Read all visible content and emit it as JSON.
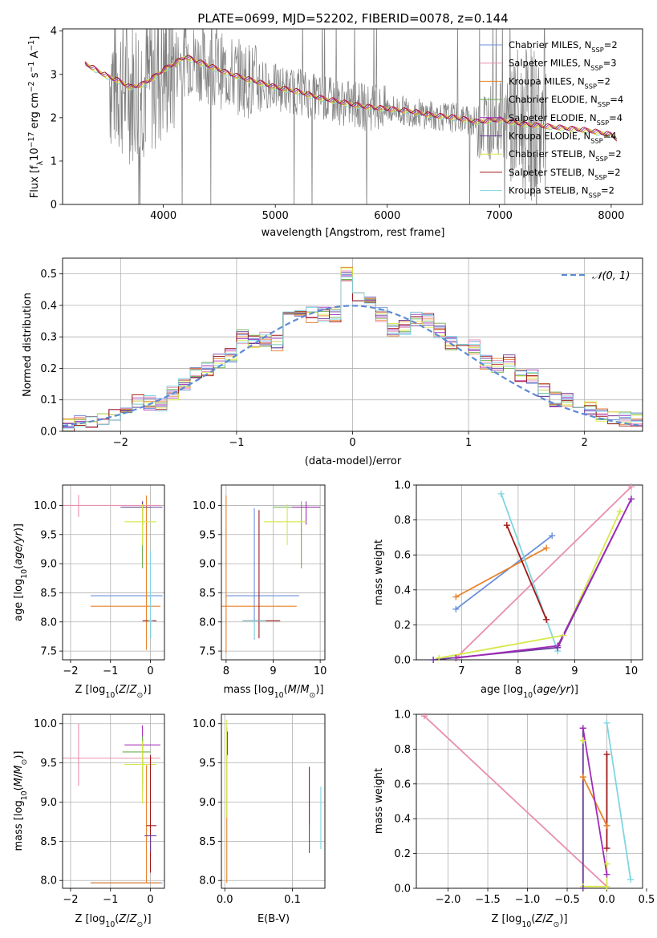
{
  "figure_title": "PLATE=0699, MJD=52202, FIBERID=0078, z=0.144",
  "colors": {
    "chabrier_miles": "#6a8fdc",
    "salpeter_miles": "#e88fb0",
    "kroupa_miles": "#e8822a",
    "chabrier_elodie": "#6fae4f",
    "salpeter_elodie": "#a02bb8",
    "kroupa_elodie": "#6a3d9a",
    "chabrier_stelib": "#d6e84a",
    "salpeter_stelib": "#a01818",
    "kroupa_stelib": "#7fd6e0",
    "data": "#808080",
    "gauss": "#5b8bd6"
  },
  "chart_data": [
    {
      "id": "spectrum",
      "type": "line",
      "title": "PLATE=0699, MJD=52202, FIBERID=0078, z=0.144",
      "xlabel": "wavelength [Angstrom, rest frame]",
      "ylabel": "Flux [f_λ10^-17 erg cm^-2 s^-1 A^-1]",
      "xlim": [
        3100,
        8280
      ],
      "ylim": [
        0,
        4.05
      ],
      "xticks": [
        4000,
        5000,
        6000,
        7000,
        8000
      ],
      "yticks": [
        0,
        1,
        2,
        3,
        4
      ],
      "legend_position": "top-right",
      "legend": [
        "Chabrier MILES, N_SSP=2",
        "Salpeter MILES, N_SSP=3",
        "Kroupa MILES, N_SSP=2",
        "Chabrier ELODIE, N_SSP=4",
        "Salpeter ELODIE, N_SSP=4",
        "Kroupa ELODIE, N_SSP=4",
        "Chabrier STELIB, N_SSP=2",
        "Salpeter STELIB, N_SSP=2",
        "Kroupa STELIB, N_SSP=2"
      ],
      "model_continuum": {
        "x": [
          3300,
          3400,
          3500,
          3600,
          3700,
          3800,
          3900,
          4000,
          4100,
          4200,
          4300,
          4400,
          4500,
          4600,
          4800,
          5000,
          5200,
          5400,
          5600,
          5800,
          6000,
          6200,
          6400,
          6600,
          6800,
          7000,
          7200,
          7400,
          7600,
          7800,
          8000,
          8050
        ],
        "y": [
          3.25,
          3.1,
          2.95,
          2.85,
          2.7,
          2.75,
          2.9,
          3.1,
          3.25,
          3.4,
          3.3,
          3.2,
          3.1,
          3.0,
          2.85,
          2.7,
          2.6,
          2.45,
          2.35,
          2.25,
          2.2,
          2.15,
          2.05,
          2.0,
          1.9,
          1.95,
          1.85,
          1.8,
          1.75,
          1.7,
          1.6,
          1.5
        ]
      }
    },
    {
      "id": "residuals",
      "type": "line",
      "xlabel": "(data-model)/error",
      "ylabel": "Normed distribution",
      "xlim": [
        -2.5,
        2.5
      ],
      "ylim": [
        0,
        0.55
      ],
      "xticks": [
        -2,
        -1,
        0,
        1,
        2
      ],
      "yticks": [
        0.0,
        0.1,
        0.2,
        0.3,
        0.4,
        0.5
      ],
      "legend_position": "top-right",
      "legend": [
        "𝒩(0, 1)"
      ],
      "histogram_bins": [
        -2.5,
        -2.4,
        -2.3,
        -2.2,
        -2.1,
        -2.0,
        -1.9,
        -1.8,
        -1.7,
        -1.6,
        -1.5,
        -1.4,
        -1.3,
        -1.2,
        -1.1,
        -1.0,
        -0.9,
        -0.8,
        -0.7,
        -0.6,
        -0.5,
        -0.4,
        -0.3,
        -0.2,
        -0.1,
        0.0,
        0.1,
        0.2,
        0.3,
        0.4,
        0.5,
        0.6,
        0.7,
        0.8,
        0.9,
        1.0,
        1.1,
        1.2,
        1.3,
        1.4,
        1.5,
        1.6,
        1.7,
        1.8,
        1.9,
        2.0,
        2.1,
        2.2,
        2.3,
        2.4,
        2.5
      ],
      "histogram_heights": [
        0.02,
        0.03,
        0.03,
        0.04,
        0.05,
        0.08,
        0.1,
        0.09,
        0.08,
        0.12,
        0.15,
        0.19,
        0.2,
        0.22,
        0.24,
        0.3,
        0.28,
        0.29,
        0.28,
        0.38,
        0.38,
        0.37,
        0.37,
        0.37,
        0.5,
        0.42,
        0.42,
        0.37,
        0.32,
        0.33,
        0.36,
        0.35,
        0.32,
        0.28,
        0.26,
        0.27,
        0.22,
        0.21,
        0.22,
        0.18,
        0.17,
        0.13,
        0.1,
        0.1,
        0.09,
        0.07,
        0.05,
        0.04,
        0.04,
        0.04
      ]
    },
    {
      "id": "age_vs_Z",
      "type": "scatter",
      "xlabel": "Z [log10(Z/Z⊙)]",
      "ylabel": "age  [log10(age/yr)]",
      "xlim": [
        -2.2,
        0.35
      ],
      "ylim": [
        7.35,
        10.35
      ],
      "xticks": [
        -2,
        -1,
        0
      ],
      "yticks": [
        7.5,
        8.0,
        8.5,
        9.0,
        9.5,
        10.0
      ],
      "points": [
        {
          "c": "chabrier_miles",
          "x": -0.5,
          "xerr": [
            1.0,
            0.8
          ],
          "y": 8.45,
          "yerr": [
            0.0,
            0.0
          ]
        },
        {
          "c": "kroupa_miles",
          "x": -0.1,
          "xerr": [
            1.4,
            0.35
          ],
          "y": 8.27,
          "yerr": [
            0.75,
            1.9
          ]
        },
        {
          "c": "salpeter_miles",
          "x": -1.8,
          "xerr": [
            0.4,
            2.05
          ],
          "y": 10.0,
          "yerr": [
            0.2,
            0.18
          ]
        },
        {
          "c": "chabrier_elodie",
          "x": -0.2,
          "xerr": [
            0.5,
            0.2
          ],
          "y": 9.97,
          "yerr": [
            1.05,
            0.1
          ]
        },
        {
          "c": "kroupa_elodie",
          "x": -0.2,
          "xerr": [
            0.55,
            0.5
          ],
          "y": 9.97,
          "yerr": [
            0.3,
            0.1
          ]
        },
        {
          "c": "chabrier_stelib",
          "x": -0.2,
          "xerr": [
            0.45,
            0.35
          ],
          "y": 9.72,
          "yerr": [
            0.4,
            0.3
          ]
        },
        {
          "c": "salpeter_stelib",
          "x": 0.0,
          "xerr": [
            0.2,
            0.15
          ],
          "y": 8.02,
          "yerr": [
            0.3,
            0.0
          ]
        },
        {
          "c": "kroupa_stelib",
          "x": 0.0,
          "xerr": [
            0.05,
            0.05
          ],
          "y": 8.02,
          "yerr": [
            0.3,
            1.2
          ]
        }
      ]
    },
    {
      "id": "age_vs_mass",
      "type": "scatter",
      "xlabel": "mass [log10(M/M⊙)]",
      "ylabel": "",
      "xlim": [
        7.9,
        10.1
      ],
      "ylim": [
        7.35,
        10.35
      ],
      "xticks": [
        8,
        9,
        10
      ],
      "yticks": [
        7.5,
        8.0,
        8.5,
        9.0,
        9.5,
        10.0
      ],
      "points": [
        {
          "c": "chabrier_miles",
          "x": 8.6,
          "xerr": [
            0.6,
            0.95
          ],
          "y": 8.45,
          "yerr": [
            0.75,
            1.5
          ]
        },
        {
          "c": "kroupa_miles",
          "x": 8.0,
          "xerr": [
            0.1,
            1.5
          ],
          "y": 8.27,
          "yerr": [
            0.8,
            1.9
          ]
        },
        {
          "c": "chabrier_elodie",
          "x": 9.6,
          "xerr": [
            0.6,
            0.4
          ],
          "y": 9.97,
          "yerr": [
            1.05,
            0.1
          ]
        },
        {
          "c": "salpeter_elodie",
          "x": 9.7,
          "xerr": [
            0.3,
            0.3
          ],
          "y": 9.97,
          "yerr": [
            0.3,
            0.1
          ]
        },
        {
          "c": "chabrier_stelib",
          "x": 9.3,
          "xerr": [
            0.5,
            0.4
          ],
          "y": 9.72,
          "yerr": [
            0.4,
            0.3
          ]
        },
        {
          "c": "salpeter_stelib",
          "x": 8.7,
          "xerr": [
            0.35,
            0.45
          ],
          "y": 8.02,
          "yerr": [
            0.3,
            1.9
          ]
        },
        {
          "c": "kroupa_stelib",
          "x": 8.6,
          "xerr": [
            0.25,
            0.25
          ],
          "y": 8.02,
          "yerr": [
            0.3,
            0.0
          ]
        }
      ]
    },
    {
      "id": "weight_vs_age",
      "type": "line",
      "xlabel": "age  [log10(age/yr)]",
      "ylabel": "mass weight",
      "xlim": [
        6.2,
        10.2
      ],
      "ylim": [
        0,
        1.0
      ],
      "xticks": [
        7,
        8,
        9,
        10
      ],
      "yticks": [
        0.0,
        0.2,
        0.4,
        0.6,
        0.8,
        1.0
      ],
      "series": [
        {
          "c": "chabrier_miles",
          "x": [
            6.9,
            8.6
          ],
          "y": [
            0.29,
            0.71
          ]
        },
        {
          "c": "kroupa_miles",
          "x": [
            6.9,
            8.5
          ],
          "y": [
            0.36,
            0.64
          ]
        },
        {
          "c": "salpeter_miles",
          "x": [
            6.9,
            10.0
          ],
          "y": [
            0.01,
            0.99
          ]
        },
        {
          "c": "kroupa_stelib",
          "x": [
            7.7,
            8.7
          ],
          "y": [
            0.95,
            0.05
          ]
        },
        {
          "c": "salpeter_stelib",
          "x": [
            7.8,
            8.5
          ],
          "y": [
            0.77,
            0.23
          ]
        },
        {
          "c": "chabrier_stelib",
          "x": [
            6.6,
            8.8,
            9.8
          ],
          "y": [
            0.01,
            0.14,
            0.85
          ]
        },
        {
          "c": "kroupa_elodie",
          "x": [
            6.5,
            8.7,
            10.0
          ],
          "y": [
            0.0,
            0.07,
            0.92
          ]
        },
        {
          "c": "salpeter_elodie",
          "x": [
            6.9,
            8.7,
            10.0
          ],
          "y": [
            0.01,
            0.08,
            0.92
          ]
        }
      ]
    },
    {
      "id": "mass_vs_Z",
      "type": "scatter",
      "xlabel": "Z [log10(Z/Z⊙)]",
      "ylabel": "mass [log10(M/M⊙)]",
      "xlim": [
        -2.2,
        0.35
      ],
      "ylim": [
        7.9,
        10.12
      ],
      "xticks": [
        -2,
        -1,
        0
      ],
      "yticks": [
        8.0,
        8.5,
        9.0,
        9.5,
        10.0
      ],
      "points": [
        {
          "c": "salpeter_miles",
          "x": -1.8,
          "xerr": [
            0.4,
            2.05
          ],
          "y": 9.56,
          "yerr": [
            0.35,
            0.44
          ]
        },
        {
          "c": "chabrier_miles",
          "x": -0.5,
          "xerr": [
            1.0,
            0.8
          ],
          "y": 7.97,
          "yerr": [
            0.0,
            0.0
          ]
        },
        {
          "c": "kroupa_miles",
          "x": -0.1,
          "xerr": [
            1.4,
            0.35
          ],
          "y": 7.97,
          "yerr": [
            0.0,
            1.5
          ]
        },
        {
          "c": "salpeter_elodie",
          "x": -0.2,
          "xerr": [
            0.45,
            0.45
          ],
          "y": 9.73,
          "yerr": [
            0.5,
            0.25
          ]
        },
        {
          "c": "chabrier_elodie",
          "x": -0.2,
          "xerr": [
            0.5,
            0.2
          ],
          "y": 9.64,
          "yerr": [
            0.5,
            0.2
          ]
        },
        {
          "c": "chabrier_stelib",
          "x": -0.2,
          "xerr": [
            0.45,
            0.35
          ],
          "y": 9.48,
          "yerr": [
            0.5,
            0.3
          ]
        },
        {
          "c": "salpeter_stelib",
          "x": 0.0,
          "xerr": [
            0.1,
            0.15
          ],
          "y": 8.7,
          "yerr": [
            0.6,
            0.9
          ]
        },
        {
          "c": "kroupa_elodie",
          "x": 0.0,
          "xerr": [
            0.15,
            0.15
          ],
          "y": 8.57,
          "yerr": [
            0.2,
            0.0
          ]
        }
      ]
    },
    {
      "id": "mass_vs_ebv",
      "type": "scatter",
      "xlabel": "E(B-V)",
      "ylabel": "",
      "xlim": [
        -0.005,
        0.148
      ],
      "ylim": [
        7.9,
        10.12
      ],
      "xticks": [
        0.0,
        0.1
      ],
      "yticks": [
        8.0,
        8.5,
        9.0,
        9.5,
        10.0
      ],
      "points": [
        {
          "c": "kroupa_miles",
          "x": 0.003,
          "y0": 7.97,
          "y1": 9.95
        },
        {
          "c": "chabrier_stelib",
          "x": 0.003,
          "y0": 8.8,
          "y1": 10.05
        },
        {
          "c": "salpeter_elodie",
          "x": 0.004,
          "y0": 9.6,
          "y1": 9.9
        },
        {
          "c": "salpeter_stelib",
          "x": 0.125,
          "y0": 8.7,
          "y1": 9.45
        },
        {
          "c": "kroupa_elodie",
          "x": 0.125,
          "y0": 8.35,
          "y1": 8.7
        },
        {
          "c": "kroupa_stelib",
          "x": 0.142,
          "y0": 8.4,
          "y1": 9.2
        }
      ]
    },
    {
      "id": "weight_vs_Z",
      "type": "line",
      "xlabel": "Z [log10(Z/Z⊙)]",
      "ylabel": "mass weight",
      "xlim": [
        -2.4,
        0.45
      ],
      "ylim": [
        0,
        1.0
      ],
      "xticks": [
        -2.0,
        -1.5,
        -1.0,
        -0.5,
        0.0,
        0.5
      ],
      "yticks": [
        0.0,
        0.2,
        0.4,
        0.6,
        0.8,
        1.0
      ],
      "series": [
        {
          "c": "salpeter_miles",
          "x": [
            -2.3,
            0.0
          ],
          "y": [
            0.99,
            0.01
          ]
        },
        {
          "c": "kroupa_miles",
          "x": [
            -0.3,
            0.0
          ],
          "y": [
            0.64,
            0.36
          ]
        },
        {
          "c": "chabrier_stelib",
          "x": [
            -0.3,
            -0.3,
            0.0,
            0.0
          ],
          "y": [
            0.85,
            0.01,
            0.01,
            0.14
          ]
        },
        {
          "c": "kroupa_elodie",
          "x": [
            -0.3,
            -0.3
          ],
          "y": [
            0.92,
            0.0
          ]
        },
        {
          "c": "salpeter_elodie",
          "x": [
            -0.3,
            0.0
          ],
          "y": [
            0.92,
            0.08
          ]
        },
        {
          "c": "salpeter_stelib",
          "x": [
            0.0,
            0.0
          ],
          "y": [
            0.77,
            0.23
          ]
        },
        {
          "c": "kroupa_stelib",
          "x": [
            0.0,
            0.3
          ],
          "y": [
            0.95,
            0.05
          ]
        }
      ]
    }
  ]
}
